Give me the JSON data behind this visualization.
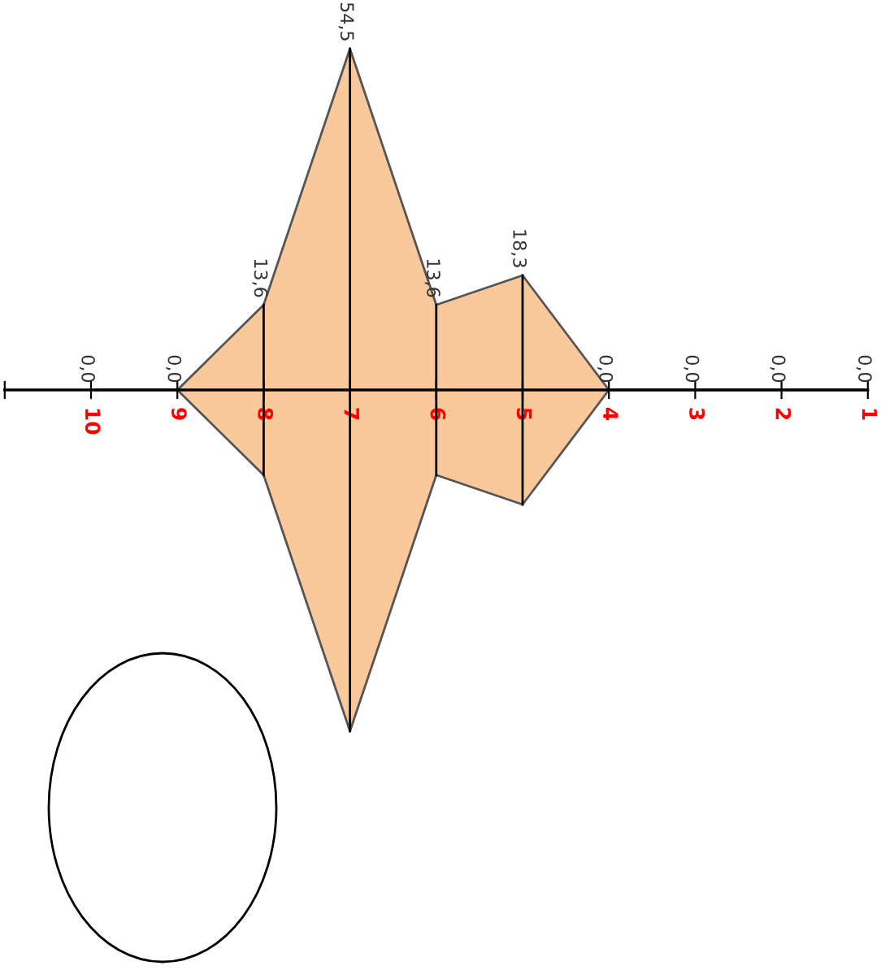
{
  "chart_data": {
    "type": "area",
    "categories": [
      "10",
      "9",
      "8",
      "7",
      "6",
      "5",
      "4",
      "3",
      "2",
      "1"
    ],
    "values": [
      0,
      0,
      13.6,
      54.5,
      13.6,
      18.3,
      0,
      0,
      0,
      0
    ],
    "value_labels": [
      "0,0",
      "0,0",
      "13,6",
      "54,5",
      "13,6",
      "18,3",
      "0,0",
      "0,0",
      "0,0",
      "0,0"
    ],
    "color": "#f9c89b"
  }
}
